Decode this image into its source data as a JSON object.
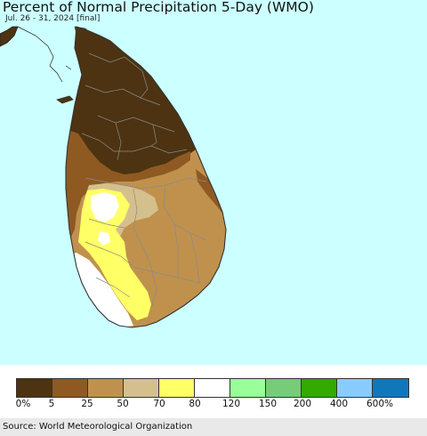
{
  "title": "Percent of Normal Precipitation 5-Day (WMO)",
  "subtitle": "Jul. 26 - 31, 2024 [final]",
  "source": "Source: World Meteorological Organization",
  "colors": {
    "ocean": "#ccffff",
    "less_5": "#4d3311",
    "p5_25": "#8e5a22",
    "p25_50": "#c0914d",
    "p50_70": "#d4c08d",
    "p70_80": "#ffff66",
    "p80_120": "#ffffff"
  },
  "legend": {
    "colors": [
      "#4d3311",
      "#8e5a22",
      "#c0914d",
      "#d4c08d",
      "#ffff66",
      "#ffffff",
      "#99ff99",
      "#77cc77",
      "#33aa00",
      "#88ccff",
      "#1177bb"
    ],
    "labels": [
      "0%",
      "5",
      "25",
      "50",
      "70",
      "80",
      "120",
      "150",
      "200",
      "400",
      "600%"
    ]
  }
}
